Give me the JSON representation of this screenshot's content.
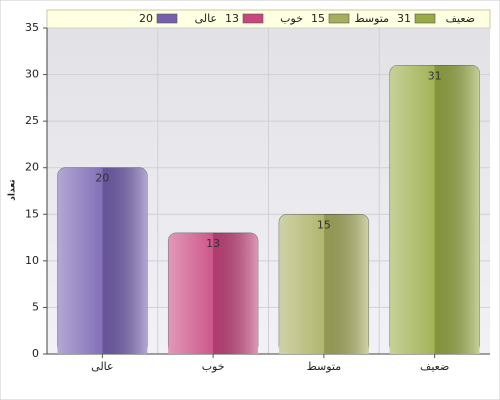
{
  "chart_data": {
    "type": "bar",
    "y_label": "تعداد",
    "categories": [
      "عالی",
      "خوب",
      "متوسط",
      "ضعیف"
    ],
    "values": [
      20,
      13,
      15,
      31
    ],
    "colors": [
      "#7560b0",
      "#c8457e",
      "#a9ae5e",
      "#98ab45"
    ],
    "ylim": [
      0,
      35
    ],
    "yticks": [
      0,
      5,
      10,
      15,
      20,
      25,
      30,
      35
    ],
    "grid": true
  }
}
